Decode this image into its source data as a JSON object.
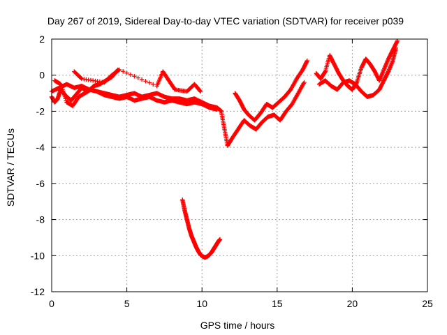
{
  "chart_data": {
    "type": "scatter",
    "title": "Day 267 of 2019, Sidereal Day-to-day VTEC variation (SDTVAR) for receiver p039",
    "xlabel": "GPS time / hours",
    "ylabel": "SDTVAR / TECUs",
    "xlim": [
      0,
      25
    ],
    "ylim": [
      -12,
      2
    ],
    "xticks": [
      0,
      5,
      10,
      15,
      20,
      25
    ],
    "yticks": [
      -12,
      -10,
      -8,
      -6,
      -4,
      -2,
      0,
      2
    ],
    "grid": true,
    "marker": "+",
    "color": "#ff0000",
    "series": [
      {
        "name": "track-main-a",
        "x": [
          0.0,
          0.2,
          0.4,
          0.6,
          0.8,
          1.0,
          1.3,
          1.6,
          2.0,
          2.4,
          2.8,
          3.2,
          3.6,
          4.0,
          4.4
        ],
        "y": [
          -1.2,
          -1.5,
          -1.3,
          -0.8,
          -1.0,
          -1.2,
          -1.4,
          -1.1,
          -0.7,
          -0.9,
          -0.6,
          -0.5,
          -0.3,
          -0.1,
          0.3
        ]
      },
      {
        "name": "track-main-b",
        "x": [
          0.0,
          0.5,
          1.0,
          1.5,
          2.0,
          2.5,
          3.0,
          3.5,
          4.0,
          4.5,
          5.0,
          5.5,
          6.0,
          6.5,
          7.0,
          7.5,
          8.0,
          8.5,
          9.0,
          9.5,
          10.0,
          10.5,
          11.0,
          11.3
        ],
        "y": [
          -0.9,
          -0.7,
          -0.5,
          -0.7,
          -0.6,
          -0.8,
          -0.9,
          -1.0,
          -1.1,
          -1.2,
          -1.1,
          -1.0,
          -1.2,
          -1.1,
          -1.0,
          -1.2,
          -1.3,
          -1.3,
          -1.4,
          -1.3,
          -1.5,
          -1.7,
          -1.8,
          -2.0
        ]
      },
      {
        "name": "track-main-c",
        "x": [
          0.2,
          0.6,
          1.0,
          1.4,
          1.8,
          2.2,
          2.6,
          3.0,
          3.5,
          4.0,
          4.5,
          5.0,
          5.5,
          6.0,
          6.5,
          7.0,
          7.5,
          8.0,
          8.5,
          9.0,
          9.5,
          10.0,
          10.5,
          11.0
        ],
        "y": [
          -0.3,
          -0.5,
          -1.5,
          -1.7,
          -1.2,
          -1.0,
          -0.8,
          -0.9,
          -1.1,
          -1.2,
          -1.3,
          -1.2,
          -1.4,
          -1.3,
          -1.2,
          -1.4,
          -1.5,
          -1.4,
          -1.5,
          -1.6,
          -1.5,
          -1.6,
          -1.8,
          -1.9
        ]
      },
      {
        "name": "track-spikes",
        "x": [
          1.5,
          2.0,
          3.5,
          4.0,
          4.5,
          7.0,
          7.4,
          7.8,
          8.2,
          9.0,
          9.5,
          9.9
        ],
        "y": [
          0.2,
          -0.2,
          -0.4,
          0.0,
          0.3,
          -0.6,
          0.2,
          -0.3,
          -0.8,
          -0.9,
          -0.5,
          -0.9
        ]
      },
      {
        "name": "track-mid",
        "x": [
          11.3,
          11.5,
          11.7,
          12.0,
          12.4,
          12.8,
          13.2,
          13.6,
          14.0,
          14.4,
          14.8,
          15.2,
          15.6,
          16.0,
          16.4,
          16.8
        ],
        "y": [
          -2.1,
          -3.0,
          -3.9,
          -3.5,
          -3.0,
          -2.5,
          -2.8,
          -3.0,
          -2.6,
          -2.3,
          -2.2,
          -2.5,
          -2.0,
          -1.6,
          -1.0,
          -0.4
        ]
      },
      {
        "name": "track-mid-b",
        "x": [
          12.2,
          12.5,
          12.8,
          13.1,
          13.5,
          13.9,
          14.3,
          14.7,
          15.1,
          15.5,
          15.9,
          16.3,
          16.7,
          17.0
        ],
        "y": [
          -1.0,
          -1.4,
          -1.9,
          -2.2,
          -2.5,
          -2.1,
          -1.6,
          -1.8,
          -1.5,
          -1.2,
          -0.8,
          -0.2,
          0.3,
          0.8
        ]
      },
      {
        "name": "track-late",
        "x": [
          17.6,
          17.9,
          18.2,
          18.5,
          18.8,
          19.1,
          19.4,
          19.7,
          20.0,
          20.3,
          20.6,
          20.9,
          21.2,
          21.5,
          21.8,
          22.1,
          22.4,
          22.7,
          23.0
        ],
        "y": [
          0.1,
          -0.2,
          0.2,
          1.1,
          0.6,
          0.1,
          -0.3,
          -0.6,
          -0.8,
          -0.4,
          0.4,
          0.9,
          0.6,
          0.2,
          -0.3,
          0.3,
          0.9,
          1.4,
          1.9
        ]
      },
      {
        "name": "track-late-b",
        "x": [
          17.8,
          18.2,
          18.6,
          19.0,
          19.4,
          19.8,
          20.2,
          20.6,
          21.0,
          21.4,
          21.8,
          22.1,
          22.4,
          22.7,
          22.9
        ],
        "y": [
          -0.5,
          -0.3,
          -0.6,
          -0.8,
          -0.4,
          -0.3,
          -0.5,
          -0.9,
          -1.2,
          -1.1,
          -0.8,
          -0.3,
          0.2,
          0.8,
          1.5
        ]
      },
      {
        "name": "track-v",
        "x": [
          8.7,
          8.85,
          9.0,
          9.15,
          9.3,
          9.45,
          9.6,
          9.75,
          9.9,
          10.05,
          10.2,
          10.35,
          10.5,
          10.65,
          10.8,
          10.95,
          11.1,
          11.2
        ],
        "y": [
          -6.9,
          -7.5,
          -8.0,
          -8.5,
          -8.9,
          -9.2,
          -9.5,
          -9.75,
          -9.95,
          -10.05,
          -10.1,
          -10.05,
          -9.95,
          -9.8,
          -9.6,
          -9.4,
          -9.2,
          -9.1
        ]
      }
    ]
  }
}
